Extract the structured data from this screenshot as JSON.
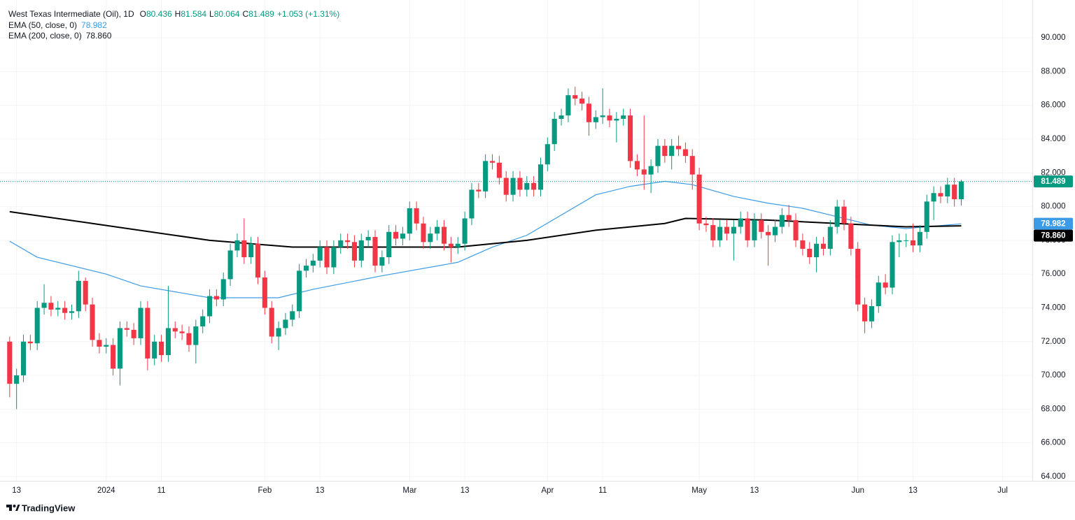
{
  "chart_data": {
    "type": "candlestick",
    "title": "West Texas Intermediate (Oil), 1D",
    "ohlc_letters": [
      "O",
      "H",
      "L",
      "C"
    ],
    "change": "+1.053 (+1.31%)",
    "up_color": "#089981",
    "down_color": "#f23645",
    "open": [
      72.0,
      69.5,
      70.0,
      72.0,
      71.9,
      74.0,
      74.3,
      73.9,
      74.0,
      73.7,
      73.8,
      75.6,
      74.2,
      72.1,
      71.7,
      71.8,
      70.4,
      72.8,
      72.7,
      72.2,
      74.0,
      71.0,
      72.0,
      71.2,
      72.8,
      72.6,
      72.5,
      71.8,
      72.9,
      73.5,
      74.7,
      74.5,
      75.7,
      77.4,
      78.0,
      77.0,
      77.8,
      75.8,
      74.0,
      72.3,
      72.8,
      73.3,
      73.8,
      76.2,
      76.5,
      76.8,
      77.6,
      76.4,
      77.6,
      78.0,
      77.9,
      76.8,
      78.0,
      78.2,
      76.5,
      77.0,
      78.5,
      78.1,
      78.4,
      79.9,
      79.0,
      77.9,
      78.4,
      78.8,
      77.8,
      77.6,
      77.8,
      79.3,
      81.0,
      80.9,
      82.7,
      82.6,
      81.7,
      80.7,
      81.7,
      81.0,
      81.4,
      81.0,
      82.5,
      83.7,
      85.2,
      85.4,
      86.6,
      86.4,
      86.1,
      85.0,
      85.3,
      85.4,
      85.1,
      85.2,
      85.4,
      82.7,
      82.2,
      81.9,
      82.4,
      83.6,
      83.0,
      83.6,
      83.4,
      83.0,
      81.9,
      79.0,
      78.9,
      78.0,
      78.8,
      78.4,
      78.8,
      79.3,
      78.0,
      79.2,
      78.5,
      78.3,
      78.8,
      79.5,
      79.2,
      78.0,
      77.5,
      77.0,
      77.8,
      77.5,
      78.8,
      80.0,
      79.0,
      77.5,
      74.2,
      73.2,
      74.1,
      75.5,
      75.2,
      77.9,
      78.0,
      78.0,
      77.7,
      78.5,
      80.3,
      80.8,
      80.6,
      81.3,
      80.436
    ],
    "high": [
      72.3,
      70.4,
      72.4,
      72.4,
      74.4,
      75.4,
      74.7,
      74.4,
      74.4,
      74.2,
      76.2,
      75.8,
      74.6,
      72.5,
      72.2,
      72.2,
      73.2,
      73.2,
      73.1,
      74.4,
      74.4,
      72.4,
      72.4,
      75.3,
      73.2,
      73.0,
      72.9,
      73.3,
      73.9,
      75.1,
      75.1,
      76.1,
      77.8,
      78.4,
      79.3,
      78.2,
      78.2,
      76.2,
      74.4,
      73.2,
      73.7,
      74.2,
      76.6,
      76.9,
      77.2,
      78.0,
      78.0,
      78.0,
      78.4,
      78.4,
      78.3,
      78.4,
      78.6,
      78.6,
      77.4,
      78.9,
      78.9,
      78.8,
      80.3,
      80.3,
      79.4,
      78.8,
      79.2,
      79.2,
      78.2,
      78.2,
      79.7,
      81.4,
      81.4,
      83.1,
      83.1,
      83.0,
      82.1,
      82.1,
      82.1,
      81.8,
      81.8,
      82.9,
      84.1,
      85.6,
      85.8,
      87.0,
      87.1,
      86.8,
      86.5,
      85.7,
      87.0,
      85.8,
      85.6,
      85.8,
      85.8,
      83.1,
      85.4,
      82.8,
      84.0,
      84.0,
      84.0,
      84.2,
      83.8,
      83.4,
      82.3,
      79.4,
      79.3,
      79.2,
      79.2,
      79.2,
      79.7,
      79.7,
      79.6,
      79.6,
      78.9,
      79.2,
      79.9,
      80.1,
      79.6,
      78.4,
      77.9,
      78.2,
      78.2,
      79.2,
      80.4,
      80.4,
      79.4,
      77.9,
      74.6,
      74.5,
      75.9,
      76.0,
      78.3,
      78.4,
      78.4,
      79.0,
      78.9,
      80.7,
      81.2,
      81.2,
      81.7,
      81.7,
      81.584
    ],
    "low": [
      68.7,
      68.0,
      69.6,
      71.5,
      71.5,
      73.6,
      73.5,
      73.5,
      73.3,
      73.3,
      73.4,
      73.8,
      71.7,
      71.3,
      71.3,
      70.0,
      69.4,
      72.3,
      71.8,
      71.8,
      70.3,
      70.6,
      70.8,
      70.8,
      72.2,
      72.1,
      71.4,
      70.7,
      72.5,
      73.1,
      74.1,
      74.1,
      75.3,
      77.0,
      76.6,
      76.6,
      75.4,
      73.6,
      71.9,
      71.5,
      72.4,
      72.9,
      73.4,
      75.8,
      76.1,
      76.4,
      76.0,
      76.0,
      77.2,
      77.5,
      76.4,
      76.4,
      77.6,
      76.1,
      76.1,
      76.6,
      77.7,
      77.7,
      78.0,
      78.6,
      77.5,
      77.5,
      78.0,
      77.4,
      76.7,
      77.2,
      77.4,
      78.9,
      80.5,
      80.5,
      82.2,
      81.3,
      80.3,
      80.3,
      80.6,
      80.6,
      80.6,
      80.6,
      82.1,
      83.3,
      84.8,
      85.0,
      86.0,
      85.7,
      84.2,
      84.6,
      84.9,
      84.7,
      83.8,
      84.8,
      82.3,
      81.8,
      81.0,
      80.8,
      82.0,
      82.6,
      82.2,
      83.0,
      82.6,
      81.0,
      78.6,
      78.5,
      77.6,
      77.6,
      78.0,
      76.8,
      78.4,
      77.6,
      77.6,
      78.1,
      76.5,
      77.9,
      78.4,
      78.8,
      77.6,
      77.1,
      76.6,
      76.1,
      77.1,
      77.1,
      78.4,
      78.6,
      77.1,
      73.8,
      72.5,
      72.8,
      73.7,
      74.8,
      74.8,
      77.0,
      77.6,
      77.3,
      77.3,
      78.1,
      79.2,
      80.2,
      80.2,
      80.0,
      80.064
    ],
    "close": [
      69.5,
      70.0,
      72.0,
      71.9,
      74.0,
      74.3,
      73.9,
      74.0,
      73.7,
      73.8,
      75.6,
      74.2,
      72.1,
      71.7,
      71.8,
      70.4,
      72.8,
      72.7,
      72.2,
      74.0,
      71.0,
      72.0,
      71.2,
      72.8,
      72.6,
      72.5,
      71.8,
      72.9,
      73.5,
      74.7,
      74.5,
      75.7,
      77.4,
      78.0,
      77.0,
      77.8,
      75.8,
      74.0,
      72.3,
      72.8,
      73.3,
      73.8,
      76.2,
      76.5,
      76.8,
      77.6,
      76.4,
      77.6,
      78.0,
      77.9,
      76.8,
      78.0,
      78.2,
      76.5,
      77.0,
      78.5,
      78.1,
      78.4,
      79.9,
      79.0,
      77.9,
      78.4,
      78.8,
      77.8,
      77.6,
      77.8,
      79.3,
      81.0,
      80.9,
      82.7,
      82.6,
      81.7,
      80.7,
      81.7,
      81.0,
      81.4,
      81.0,
      82.5,
      83.7,
      85.2,
      85.4,
      86.6,
      86.4,
      86.1,
      85.0,
      85.3,
      85.4,
      85.1,
      85.2,
      85.4,
      82.7,
      82.2,
      81.9,
      82.4,
      83.6,
      83.0,
      83.6,
      83.4,
      83.0,
      81.9,
      79.0,
      78.9,
      78.0,
      78.8,
      78.4,
      78.8,
      79.3,
      78.0,
      79.2,
      78.5,
      78.3,
      78.8,
      79.5,
      79.2,
      78.0,
      77.5,
      77.0,
      77.8,
      77.5,
      78.8,
      80.0,
      79.0,
      77.5,
      74.2,
      73.2,
      74.1,
      75.5,
      75.2,
      77.9,
      78.0,
      78.0,
      77.7,
      78.5,
      80.3,
      80.8,
      80.6,
      81.3,
      80.436,
      81.489
    ],
    "series": [
      {
        "name": "EMA (50, close, 0)",
        "color": "#3b9be6",
        "value_label": "78.982",
        "x": [
          0,
          4,
          14,
          19,
          29,
          39,
          44,
          54,
          65,
          70,
          75,
          80,
          85,
          90,
          95,
          99,
          105,
          110,
          115,
          120,
          125,
          130,
          138
        ],
        "values": [
          77.95,
          77.0,
          76.0,
          75.3,
          74.6,
          74.6,
          75.1,
          75.9,
          76.7,
          77.6,
          78.3,
          79.5,
          80.7,
          81.2,
          81.5,
          81.3,
          80.6,
          80.2,
          79.9,
          79.4,
          78.9,
          78.7,
          78.982
        ]
      },
      {
        "name": "EMA (200, close, 0)",
        "color": "#000000",
        "value_label": "78.860",
        "x": [
          0,
          12,
          29,
          41,
          65,
          75,
          85,
          95,
          98,
          110,
          120,
          130,
          138
        ],
        "values": [
          79.7,
          79.0,
          78.0,
          77.6,
          77.6,
          78.0,
          78.6,
          79.0,
          79.3,
          79.2,
          79.0,
          78.8,
          78.86
        ]
      }
    ],
    "xlim": [
      -1.4,
      148.3
    ],
    "xticks": [
      {
        "value": 1,
        "label": "13"
      },
      {
        "value": 14,
        "label": "2024"
      },
      {
        "value": 22,
        "label": "11"
      },
      {
        "value": 37,
        "label": "Feb"
      },
      {
        "value": 45,
        "label": "13"
      },
      {
        "value": 58,
        "label": "Mar"
      },
      {
        "value": 66,
        "label": "13"
      },
      {
        "value": 78,
        "label": "Apr"
      },
      {
        "value": 86,
        "label": "11"
      },
      {
        "value": 100,
        "label": "May"
      },
      {
        "value": 108,
        "label": "13"
      },
      {
        "value": 123,
        "label": "Jun"
      },
      {
        "value": 131,
        "label": "13"
      },
      {
        "value": 144,
        "label": "Jul"
      }
    ],
    "ylim": [
      63.75,
      92.24
    ],
    "yticks": [
      {
        "value": 64,
        "label": "64.000"
      },
      {
        "value": 66,
        "label": "66.000"
      },
      {
        "value": 68,
        "label": "68.000"
      },
      {
        "value": 70,
        "label": "70.000"
      },
      {
        "value": 72,
        "label": "72.000"
      },
      {
        "value": 74,
        "label": "74.000"
      },
      {
        "value": 76,
        "label": "76.000"
      },
      {
        "value": 78,
        "label": "78.000"
      },
      {
        "value": 80,
        "label": "80.000"
      },
      {
        "value": 82,
        "label": "82.000"
      },
      {
        "value": 84,
        "label": "84.000"
      },
      {
        "value": 86,
        "label": "86.000"
      },
      {
        "value": 88,
        "label": "88.000"
      },
      {
        "value": 90,
        "label": "90.000"
      }
    ],
    "grid": true
  },
  "branding": "TradingView"
}
